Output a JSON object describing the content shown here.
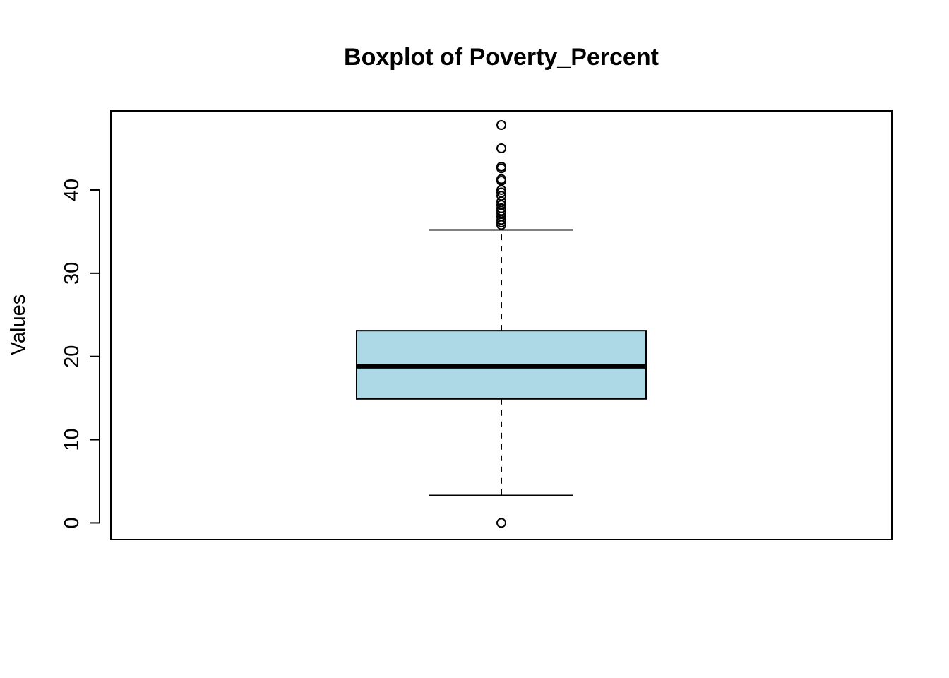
{
  "chart_data": {
    "type": "boxplot",
    "title": "Boxplot of Poverty_Percent",
    "ylabel": "Values",
    "xlabel": "",
    "ylim": [
      -2,
      49.5
    ],
    "yticks": [
      0,
      10,
      20,
      30,
      40
    ],
    "grid": false,
    "legend": "none",
    "box": {
      "q1": 14.9,
      "median": 18.8,
      "q3": 23.1,
      "whisker_low": 3.3,
      "whisker_high": 35.2
    },
    "outliers": [
      47.8,
      45.0,
      42.8,
      42.6,
      41.3,
      41.1,
      40.0,
      39.7,
      39.3,
      38.6,
      38.2,
      37.8,
      37.5,
      37.2,
      36.8,
      36.4,
      36.1,
      35.8,
      0.0
    ],
    "colors": {
      "box_fill": "#add8e6",
      "stroke": "#000000"
    }
  }
}
